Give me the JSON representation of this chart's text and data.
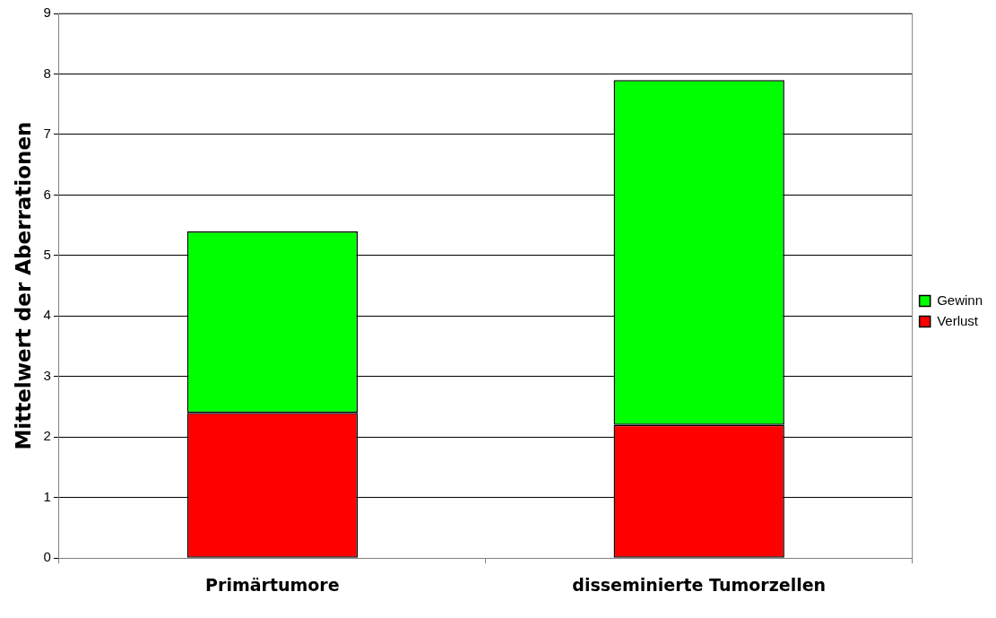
{
  "chart_data": {
    "type": "bar",
    "ylabel": "Mittelwert der Aberrationen",
    "categories": [
      "Primärtumore",
      "disseminierte Tumorzellen"
    ],
    "series": [
      {
        "name": "Verlust",
        "color": "#ff0000",
        "values": [
          2.4,
          2.2
        ]
      },
      {
        "name": "Gewinn",
        "color": "#00ff00",
        "values": [
          3.0,
          5.7
        ]
      }
    ],
    "stacked": true,
    "ylim": [
      0,
      9
    ],
    "yticks": [
      0,
      1,
      2,
      3,
      4,
      5,
      6,
      7,
      8,
      9
    ],
    "grid": "y",
    "legend": "right"
  }
}
